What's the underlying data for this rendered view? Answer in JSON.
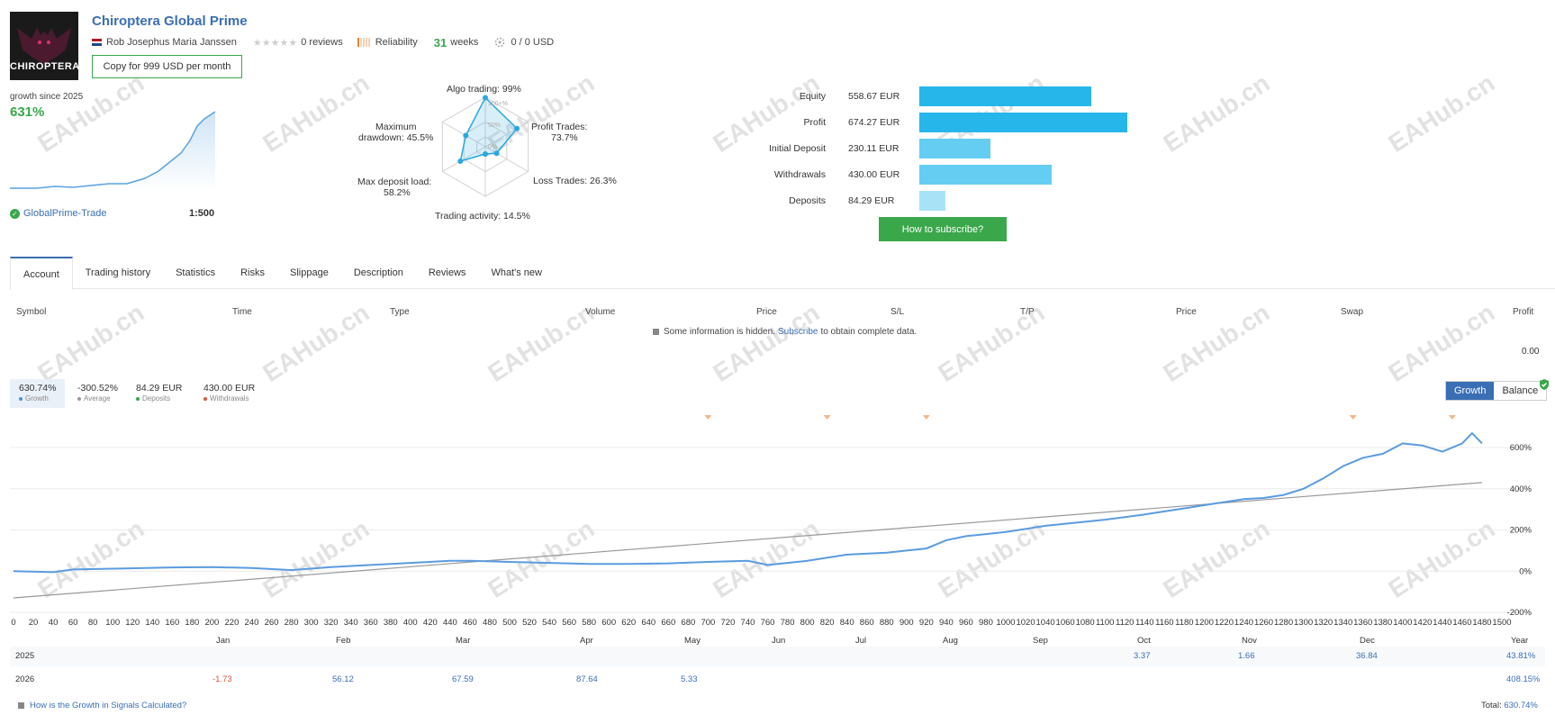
{
  "header": {
    "logo_text": "CHIROPTERA",
    "title": "Chiroptera Global Prime",
    "author": "Rob Josephus Maria Janssen",
    "reviews": "0 reviews",
    "reliability_label": "Reliability",
    "weeks_num": "31",
    "weeks_label": "weeks",
    "subscribers": "0 / 0 USD",
    "copy_button": "Copy for 999 USD per month"
  },
  "growth_summary": {
    "label": "growth since 2025",
    "value": "631%",
    "broker": "GlobalPrime-Trade",
    "leverage": "1:500"
  },
  "radar": {
    "algo": "Algo trading: 99%",
    "profit_trades_1": "Profit Trades:",
    "profit_trades_2": "73.7%",
    "loss_trades": "Loss Trades: 26.3%",
    "trading_activity": "Trading activity: 14.5%",
    "max_deposit_1": "Max deposit load:",
    "max_deposit_2": "58.2%",
    "max_dd_1": "Maximum",
    "max_dd_2": "drawdown: 45.5%",
    "ring_100": "100+%",
    "ring_50": "50%",
    "ring_0": "0%",
    "values": {
      "algo": 99,
      "profit": 73.7,
      "loss": 26.3,
      "activity": 14.5,
      "deposit_load": 58.2,
      "drawdown": 45.5
    }
  },
  "balance_bars": [
    {
      "label": "Equity",
      "value": "558.67 EUR",
      "amount": 558.67,
      "color": "#26b6ea"
    },
    {
      "label": "Profit",
      "value": "674.27 EUR",
      "amount": 674.27,
      "color": "#26b6ea"
    },
    {
      "label": "Initial Deposit",
      "value": "230.11 EUR",
      "amount": 230.11,
      "color": "#65cdf1"
    },
    {
      "label": "Withdrawals",
      "value": "430.00 EUR",
      "amount": 430.0,
      "color": "#65cdf1"
    },
    {
      "label": "Deposits",
      "value": "84.29 EUR",
      "amount": 84.29,
      "color": "#a8e2f7"
    }
  ],
  "subscribe_button": "How to subscribe?",
  "tabs": [
    "Account",
    "Trading history",
    "Statistics",
    "Risks",
    "Slippage",
    "Description",
    "Reviews",
    "What's new"
  ],
  "table": {
    "headers": [
      "Symbol",
      "Time",
      "Type",
      "Volume",
      "Price",
      "S/L",
      "T/P",
      "Price",
      "Swap",
      "Profit"
    ],
    "hidden_pre": "Some information is hidden.",
    "hidden_link": "Subscribe",
    "hidden_post": "to obtain complete data.",
    "profit_total": "0.00"
  },
  "stats": [
    {
      "value": "630.74%",
      "label": "Growth",
      "color": "#4a90d9"
    },
    {
      "value": "-300.52%",
      "label": "Average",
      "color": "#999999"
    },
    {
      "value": "84.29 EUR",
      "label": "Deposits",
      "color": "#39a74a"
    },
    {
      "value": "430.00 EUR",
      "label": "Withdrawals",
      "color": "#e0533d"
    }
  ],
  "toggle": {
    "growth": "Growth",
    "balance": "Balance"
  },
  "chart_data": {
    "type": "line",
    "x_ticks": [
      0,
      20,
      40,
      60,
      80,
      100,
      120,
      140,
      160,
      180,
      200,
      220,
      240,
      260,
      280,
      300,
      320,
      340,
      360,
      380,
      400,
      420,
      440,
      460,
      480,
      500,
      520,
      540,
      560,
      580,
      600,
      620,
      640,
      660,
      680,
      700,
      720,
      740,
      760,
      780,
      800,
      820,
      840,
      860,
      880,
      900,
      920,
      940,
      960,
      980,
      1000,
      1020,
      1040,
      1060,
      1080,
      1100,
      1120,
      1140,
      1160,
      1180,
      1200,
      1220,
      1240,
      1260,
      1280,
      1300,
      1320,
      1340,
      1360,
      1380,
      1400,
      1420,
      1440,
      1460,
      1480,
      1500
    ],
    "y_ticks": [
      "600%",
      "400%",
      "200%",
      "0%",
      "-200%"
    ],
    "xlim": [
      0,
      1500
    ],
    "ylim": [
      -200,
      700
    ],
    "series": [
      {
        "x": [
          0,
          40,
          60,
          100,
          160,
          200,
          240,
          280,
          320,
          360,
          400,
          440,
          460,
          500,
          540,
          580,
          620,
          660,
          700,
          740,
          760,
          780,
          800,
          840,
          880,
          900,
          920,
          940,
          960,
          980,
          1000,
          1040,
          1080,
          1100,
          1140,
          1180,
          1200,
          1240,
          1260,
          1280,
          1300,
          1320,
          1340,
          1360,
          1380,
          1400,
          1420,
          1440,
          1460,
          1470,
          1480
        ],
        "y": [
          0,
          -5,
          8,
          12,
          18,
          20,
          15,
          5,
          20,
          30,
          40,
          50,
          50,
          45,
          40,
          35,
          35,
          38,
          45,
          50,
          30,
          40,
          50,
          80,
          90,
          100,
          110,
          150,
          170,
          180,
          190,
          220,
          240,
          250,
          275,
          305,
          320,
          350,
          355,
          370,
          400,
          450,
          510,
          550,
          570,
          620,
          610,
          580,
          620,
          670,
          620
        ]
      },
      {
        "x": [
          0,
          1480
        ],
        "y": [
          -130,
          430
        ]
      }
    ]
  },
  "months": [
    "Jan",
    "Feb",
    "Mar",
    "Apr",
    "May",
    "Jun",
    "Jul",
    "Aug",
    "Sep",
    "Oct",
    "Nov",
    "Dec",
    "Year"
  ],
  "yearly": [
    {
      "year": "2025",
      "values": [
        "",
        "",
        "",
        "",
        "",
        "",
        "",
        "",
        "",
        "3.37",
        "1.66",
        "36.84"
      ],
      "total": "43.81%"
    },
    {
      "year": "2026",
      "values": [
        "-1.73",
        "56.12",
        "67.59",
        "87.64",
        "5.33",
        "",
        "",
        "",
        "",
        "",
        "",
        ""
      ],
      "total": "408.15%"
    }
  ],
  "footer": {
    "link": "How is the Growth in Signals Calculated?",
    "total_label": "Total:",
    "total_value": "630.74%"
  },
  "watermark": "EAHub.cn"
}
